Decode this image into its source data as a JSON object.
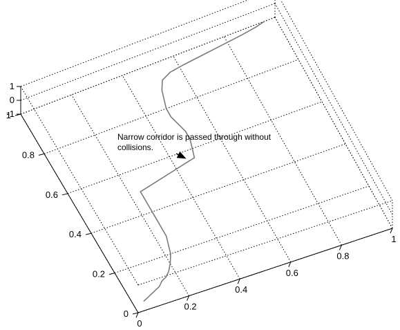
{
  "chart_data": {
    "type": "line",
    "view": "3d-perspective",
    "grid": true,
    "xlim": [
      0,
      1
    ],
    "ylim": [
      0,
      1
    ],
    "zlim": [
      -1,
      1
    ],
    "x_ticks": [
      "0",
      "0.2",
      "0.4",
      "0.6",
      "0.8",
      "1"
    ],
    "y_ticks": [
      "0",
      "0.2",
      "0.4",
      "0.6",
      "0.8",
      "1"
    ],
    "z_ticks": [
      "1",
      "0",
      "-1"
    ],
    "series": [
      {
        "color": "#7a7a7a",
        "points": [
          [
            0.04,
            0.04
          ],
          [
            0.06,
            0.05
          ],
          [
            0.08,
            0.06
          ],
          [
            0.1,
            0.07
          ],
          [
            0.12,
            0.08
          ],
          [
            0.14,
            0.1
          ],
          [
            0.16,
            0.11
          ],
          [
            0.18,
            0.13
          ],
          [
            0.2,
            0.16
          ],
          [
            0.22,
            0.2
          ],
          [
            0.23,
            0.24
          ],
          [
            0.24,
            0.28
          ],
          [
            0.24,
            0.32
          ],
          [
            0.24,
            0.36
          ],
          [
            0.24,
            0.4
          ],
          [
            0.24,
            0.44
          ],
          [
            0.24,
            0.47
          ],
          [
            0.24,
            0.5
          ],
          [
            0.28,
            0.51
          ],
          [
            0.32,
            0.52
          ],
          [
            0.36,
            0.53
          ],
          [
            0.4,
            0.54
          ],
          [
            0.44,
            0.55
          ],
          [
            0.48,
            0.56
          ],
          [
            0.49,
            0.6
          ],
          [
            0.5,
            0.64
          ],
          [
            0.5,
            0.68
          ],
          [
            0.49,
            0.72
          ],
          [
            0.48,
            0.76
          ],
          [
            0.48,
            0.8
          ],
          [
            0.49,
            0.84
          ],
          [
            0.5,
            0.88
          ],
          [
            0.52,
            0.92
          ],
          [
            0.56,
            0.94
          ],
          [
            0.62,
            0.95
          ],
          [
            0.7,
            0.96
          ],
          [
            0.78,
            0.97
          ],
          [
            0.86,
            0.98
          ],
          [
            0.92,
            0.99
          ],
          [
            0.96,
            1.0
          ]
        ]
      }
    ],
    "annotations": [
      {
        "lines": [
          "Narrow corridor is passed through without",
          "collisions."
        ],
        "arrow_to": [
          0.45,
          0.56
        ]
      }
    ]
  }
}
